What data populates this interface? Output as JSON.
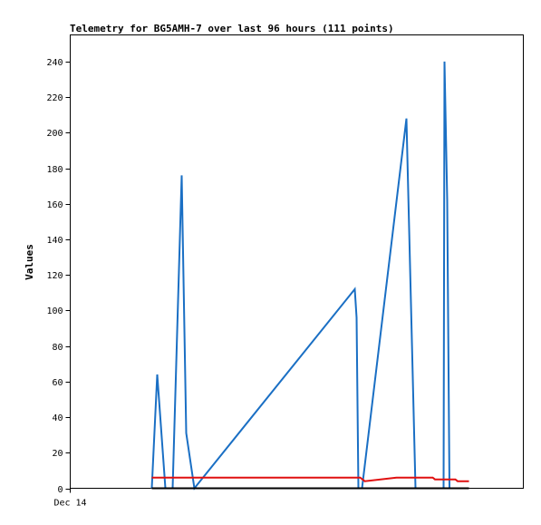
{
  "chart_data": {
    "type": "line",
    "title": "Telemetry for BG5AMH-7 over last 96 hours (111 points)",
    "xlabel": "",
    "ylabel": "Values",
    "x_tick_labels": [
      "Dec 14"
    ],
    "ylim": [
      0,
      255
    ],
    "y_ticks": [
      0,
      20,
      40,
      60,
      80,
      100,
      120,
      140,
      160,
      180,
      200,
      220,
      240
    ],
    "xlim": [
      0,
      100
    ],
    "grid": false,
    "legend": "none",
    "series": [
      {
        "color": "#1a6fc4",
        "points": [
          [
            18.0,
            0
          ],
          [
            19.2,
            64
          ],
          [
            21.0,
            0
          ],
          [
            22.6,
            0
          ],
          [
            24.6,
            176
          ],
          [
            25.6,
            31
          ],
          [
            27.4,
            0
          ],
          [
            62.8,
            112
          ],
          [
            63.2,
            96
          ],
          [
            63.6,
            0
          ],
          [
            64.4,
            0
          ],
          [
            74.2,
            208
          ],
          [
            76.2,
            0
          ],
          [
            82.4,
            0
          ],
          [
            82.6,
            240
          ],
          [
            83.2,
            162
          ],
          [
            83.7,
            0
          ]
        ]
      },
      {
        "color": "#e01010",
        "points": [
          [
            18.0,
            6
          ],
          [
            64.0,
            6
          ],
          [
            65.0,
            4
          ],
          [
            72.0,
            6
          ],
          [
            80.0,
            6
          ],
          [
            80.5,
            5
          ],
          [
            85.0,
            5
          ],
          [
            85.5,
            4
          ],
          [
            88.0,
            4
          ]
        ]
      },
      {
        "color": "#000000",
        "points": [
          [
            18.0,
            0
          ],
          [
            88.0,
            0
          ]
        ]
      }
    ]
  }
}
